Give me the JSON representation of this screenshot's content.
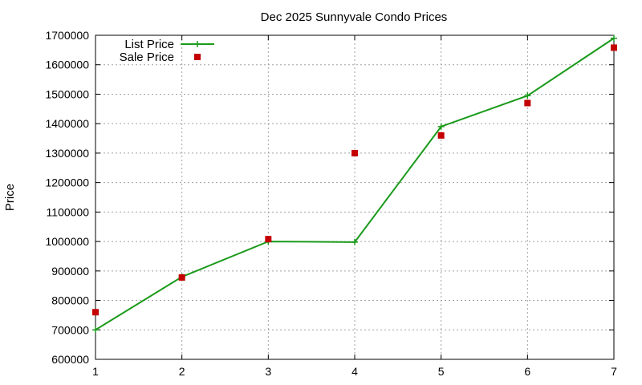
{
  "chart_data": {
    "type": "line",
    "title": "Dec 2025 Sunnyvale Condo Prices",
    "xlabel": "",
    "ylabel": "Price",
    "xlim": [
      1,
      7
    ],
    "ylim": [
      600000,
      1700000
    ],
    "xticks": [
      "1",
      "2",
      "3",
      "4",
      "5",
      "6",
      "7"
    ],
    "yticks": [
      "600000",
      "700000",
      "800000",
      "900000",
      "1000000",
      "1100000",
      "1200000",
      "1300000",
      "1400000",
      "1500000",
      "1600000",
      "1700000"
    ],
    "grid": true,
    "legend": "top-left",
    "x": [
      1,
      2,
      3,
      4,
      5,
      6,
      7
    ],
    "series": [
      {
        "name": "List Price",
        "style": "line-with-plus-markers",
        "color": "#1a9a1a",
        "values": [
          700000,
          880000,
          1000000,
          998000,
          1390000,
          1495000,
          1690000
        ]
      },
      {
        "name": "Sale Price",
        "style": "square-markers",
        "color": "#c40000",
        "values": [
          760000,
          878000,
          1008000,
          1300000,
          1360000,
          1470000,
          1658000
        ]
      }
    ]
  }
}
